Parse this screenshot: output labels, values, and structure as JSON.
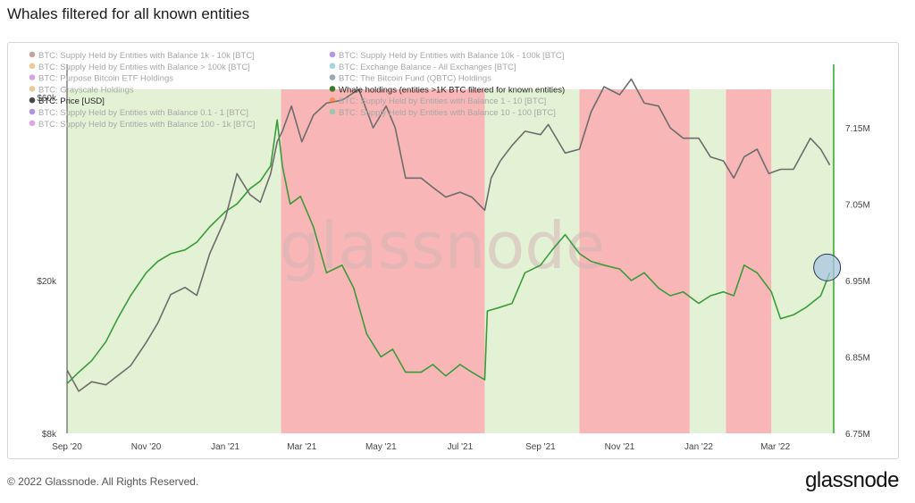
{
  "page": {
    "title": "Whales filtered for all known entities",
    "copyright": "© 2022 Glassnode. All Rights Reserved.",
    "logo": "glassnode",
    "watermark": "glassnode"
  },
  "colors": {
    "accumulation_band": "#e3f2d5",
    "distribution_band": "#f8b6b6",
    "whale_line": "#3b9b3b",
    "price_line": "#6d6d6d",
    "accent_line": "#2fa62f"
  },
  "chart_data": {
    "type": "line",
    "title": "Whales filtered for all known entities",
    "x_ticks": [
      "Sep '20",
      "Nov '20",
      "Jan '21",
      "Mar '21",
      "May '21",
      "Jul '21",
      "Sep '21",
      "Nov '21",
      "Jan '22",
      "Mar '22"
    ],
    "y_left_ticks": [
      "$8k",
      "$20k",
      "$60k"
    ],
    "y_right_ticks": [
      "6.75M",
      "6.85M",
      "6.95M",
      "7.05M",
      "7.15M"
    ],
    "y_left_scale": "log",
    "y_left_range": [
      8000,
      63000
    ],
    "y_right_range": [
      6750000,
      7200000
    ],
    "x_range": [
      "2020-09-01",
      "2022-04-15"
    ],
    "grid": false,
    "legend_position": "top-left",
    "legend": [
      {
        "label": "BTC: Supply Held by Entities with Balance 1k - 10k [BTC]",
        "color": "#8b5a5a",
        "active": false
      },
      {
        "label": "BTC: Supply Held by Entities with Balance 10k - 100k [BTC]",
        "color": "#7b3fd1",
        "active": false
      },
      {
        "label": "BTC: Supply Held by Entities with Balance > 100k [BTC]",
        "color": "#e0a040",
        "active": false
      },
      {
        "label": "BTC: Exchange Balance - All Exchanges [BTC]",
        "color": "#5ab5c8",
        "active": false
      },
      {
        "label": "BTC: Purpose Bitcoin ETF Holdings",
        "color": "#b35ad1",
        "active": false
      },
      {
        "label": "BTC: The Bitcoin Fund (QBTC) Holdings",
        "color": "#3f5f7a",
        "active": false
      },
      {
        "label": "BTC: Grayscale Holdings",
        "color": "#e09a40",
        "active": false
      },
      {
        "label": "Whale holdings (entities >1K BTC filtered for known entities)",
        "color": "#3a7a2a",
        "active": true
      },
      {
        "label": "BTC: Price [USD]",
        "color": "#4a4a4a",
        "active": true
      },
      {
        "label": "BTC: Supply Held by Entities with Balance 1 - 10 [BTC]",
        "color": "#f07a20",
        "active": false
      },
      {
        "label": "BTC: Supply Held by Entities with Balance 0.1 - 1 [BTC]",
        "color": "#6a3fd1",
        "active": false
      },
      {
        "label": "BTC: Supply Held by Entities with Balance 10 - 100 [BTC]",
        "color": "#5ad1a0",
        "active": false
      },
      {
        "label": "BTC: Supply Held by Entities with Balance 100 - 1k [BTC]",
        "color": "#c05ad1",
        "active": false
      }
    ],
    "bands": [
      {
        "start": "2020-09-01",
        "end": "2021-02-13",
        "kind": "accumulation"
      },
      {
        "start": "2021-02-13",
        "end": "2021-07-20",
        "kind": "distribution"
      },
      {
        "start": "2021-07-20",
        "end": "2021-10-01",
        "kind": "accumulation"
      },
      {
        "start": "2021-10-01",
        "end": "2021-12-25",
        "kind": "distribution"
      },
      {
        "start": "2021-12-25",
        "end": "2022-01-22",
        "kind": "accumulation"
      },
      {
        "start": "2022-01-22",
        "end": "2022-02-26",
        "kind": "distribution"
      },
      {
        "start": "2022-02-26",
        "end": "2022-04-15",
        "kind": "accumulation"
      }
    ],
    "series": [
      {
        "name": "Whale holdings (entities >1K BTC filtered for known entities)",
        "axis": "right",
        "color": "#3b9b3b",
        "x": [
          "2020-09-01",
          "2020-09-10",
          "2020-09-20",
          "2020-10-01",
          "2020-10-10",
          "2020-10-20",
          "2020-11-01",
          "2020-11-10",
          "2020-11-20",
          "2020-12-01",
          "2020-12-10",
          "2020-12-20",
          "2021-01-01",
          "2021-01-10",
          "2021-01-20",
          "2021-01-28",
          "2021-02-05",
          "2021-02-10",
          "2021-02-14",
          "2021-02-20",
          "2021-02-28",
          "2021-03-10",
          "2021-03-20",
          "2021-04-01",
          "2021-04-10",
          "2021-04-20",
          "2021-05-01",
          "2021-05-10",
          "2021-05-20",
          "2021-06-01",
          "2021-06-10",
          "2021-06-20",
          "2021-07-01",
          "2021-07-10",
          "2021-07-20",
          "2021-07-22",
          "2021-08-01",
          "2021-08-10",
          "2021-08-20",
          "2021-09-01",
          "2021-09-10",
          "2021-09-20",
          "2021-10-01",
          "2021-10-10",
          "2021-10-20",
          "2021-11-01",
          "2021-11-10",
          "2021-11-20",
          "2021-12-01",
          "2021-12-10",
          "2021-12-20",
          "2022-01-01",
          "2022-01-10",
          "2022-01-20",
          "2022-01-28",
          "2022-02-05",
          "2022-02-15",
          "2022-02-26",
          "2022-03-05",
          "2022-03-15",
          "2022-03-25",
          "2022-04-05",
          "2022-04-12"
        ],
        "values": [
          6.815,
          6.83,
          6.845,
          6.87,
          6.9,
          6.93,
          6.96,
          6.975,
          6.985,
          6.99,
          7.0,
          7.02,
          7.04,
          7.05,
          7.07,
          7.08,
          7.1,
          7.16,
          7.1,
          7.05,
          7.06,
          7.02,
          6.96,
          6.97,
          6.94,
          6.88,
          6.85,
          6.86,
          6.83,
          6.83,
          6.84,
          6.825,
          6.84,
          6.83,
          6.82,
          6.91,
          6.915,
          6.92,
          6.96,
          6.97,
          6.99,
          7.01,
          6.985,
          6.975,
          6.97,
          6.965,
          6.95,
          6.96,
          6.94,
          6.93,
          6.935,
          6.92,
          6.93,
          6.935,
          6.93,
          6.97,
          6.96,
          6.935,
          6.9,
          6.905,
          6.915,
          6.93,
          6.96
        ]
      },
      {
        "name": "BTC: Price [USD]",
        "axis": "left",
        "color": "#6d6d6d",
        "x": [
          "2020-09-01",
          "2020-09-10",
          "2020-09-20",
          "2020-10-01",
          "2020-10-10",
          "2020-10-20",
          "2020-11-01",
          "2020-11-10",
          "2020-11-20",
          "2020-12-01",
          "2020-12-10",
          "2020-12-20",
          "2021-01-01",
          "2021-01-10",
          "2021-01-20",
          "2021-01-28",
          "2021-02-05",
          "2021-02-10",
          "2021-02-14",
          "2021-02-21",
          "2021-03-01",
          "2021-03-10",
          "2021-03-20",
          "2021-04-01",
          "2021-04-14",
          "2021-04-25",
          "2021-05-05",
          "2021-05-12",
          "2021-05-20",
          "2021-06-01",
          "2021-06-10",
          "2021-06-20",
          "2021-07-01",
          "2021-07-10",
          "2021-07-20",
          "2021-07-25",
          "2021-08-01",
          "2021-08-10",
          "2021-08-20",
          "2021-09-01",
          "2021-09-07",
          "2021-09-20",
          "2021-10-01",
          "2021-10-10",
          "2021-10-20",
          "2021-11-01",
          "2021-11-10",
          "2021-11-20",
          "2021-12-01",
          "2021-12-10",
          "2021-12-20",
          "2022-01-01",
          "2022-01-10",
          "2022-01-20",
          "2022-01-28",
          "2022-02-05",
          "2022-02-15",
          "2022-02-24",
          "2022-03-05",
          "2022-03-15",
          "2022-03-28",
          "2022-04-05",
          "2022-04-12"
        ],
        "values": [
          11700,
          10300,
          10900,
          10700,
          11300,
          12000,
          13800,
          15500,
          18400,
          19200,
          18300,
          23500,
          29000,
          38000,
          33500,
          32000,
          38000,
          46000,
          49000,
          57000,
          46000,
          54000,
          58000,
          59000,
          63000,
          50000,
          57000,
          50000,
          37000,
          37000,
          35000,
          33000,
          34000,
          33000,
          30500,
          37000,
          41000,
          45000,
          49000,
          48000,
          51000,
          43000,
          44000,
          55000,
          64000,
          61000,
          67000,
          58000,
          57000,
          50000,
          47000,
          47000,
          42000,
          41000,
          37000,
          42000,
          44000,
          38000,
          39000,
          39000,
          47000,
          44000,
          40000
        ]
      }
    ]
  }
}
